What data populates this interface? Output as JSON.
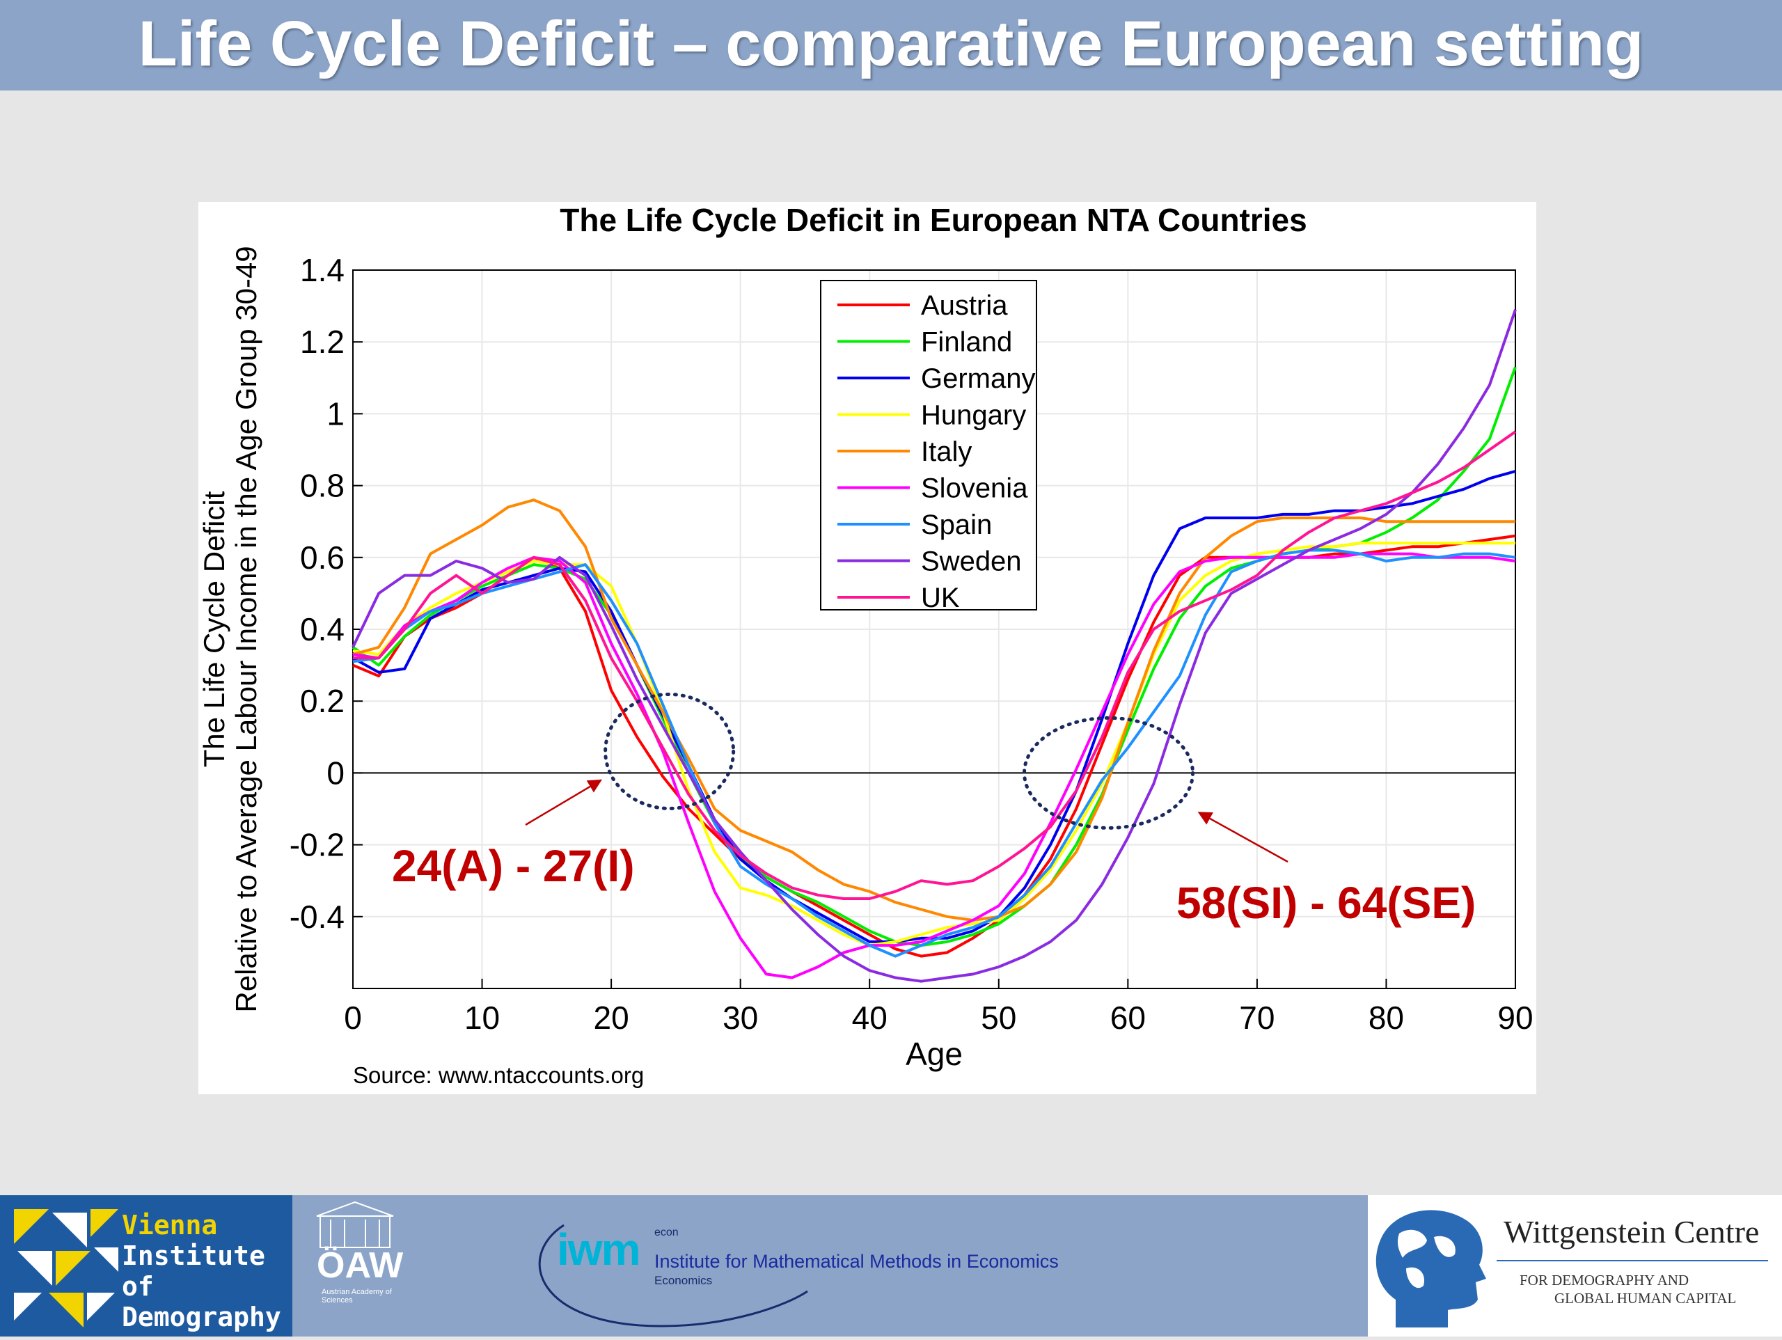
{
  "slide": {
    "title": "Life Cycle Deficit – comparative European setting"
  },
  "chart_data": {
    "type": "line",
    "title": "The Life Cycle Deficit in European NTA Countries",
    "xlabel": "Age",
    "ylabel_line1": "The Life Cycle Deficit",
    "ylabel_line2": "Relative to Average Labour Income in the Age Group 30-49",
    "xlim": [
      0,
      90
    ],
    "ylim": [
      -0.6,
      1.4
    ],
    "xticks": [
      "0",
      "10",
      "20",
      "30",
      "40",
      "50",
      "60",
      "70",
      "80",
      "90"
    ],
    "yticks": [
      "1.4",
      "1.2",
      "1",
      "0.8",
      "0.6",
      "0.4",
      "0.2",
      "0",
      "-0.2",
      "-0.4"
    ],
    "legend_position": "top-center",
    "grid": true,
    "source": "Source: www.ntaccounts.org",
    "x": [
      0,
      2,
      4,
      6,
      8,
      10,
      12,
      14,
      16,
      18,
      20,
      22,
      24,
      26,
      28,
      30,
      32,
      34,
      36,
      38,
      40,
      42,
      44,
      46,
      48,
      50,
      52,
      54,
      56,
      58,
      60,
      62,
      64,
      66,
      68,
      70,
      72,
      74,
      76,
      78,
      80,
      82,
      84,
      86,
      88,
      90
    ],
    "series": [
      {
        "name": "Austria",
        "color": "#ff0000",
        "values": [
          0.3,
          0.27,
          0.38,
          0.43,
          0.46,
          0.5,
          0.55,
          0.6,
          0.57,
          0.45,
          0.23,
          0.1,
          -0.01,
          -0.1,
          -0.17,
          -0.24,
          -0.29,
          -0.33,
          -0.37,
          -0.41,
          -0.45,
          -0.49,
          -0.51,
          -0.5,
          -0.46,
          -0.41,
          -0.34,
          -0.24,
          -0.1,
          0.08,
          0.26,
          0.42,
          0.55,
          0.6,
          0.6,
          0.6,
          0.6,
          0.6,
          0.61,
          0.61,
          0.62,
          0.63,
          0.63,
          0.64,
          0.65,
          0.66
        ]
      },
      {
        "name": "Finland",
        "color": "#00ee00",
        "values": [
          0.35,
          0.3,
          0.38,
          0.44,
          0.48,
          0.52,
          0.55,
          0.58,
          0.57,
          0.54,
          0.44,
          0.3,
          0.15,
          0.0,
          -0.14,
          -0.23,
          -0.29,
          -0.33,
          -0.36,
          -0.4,
          -0.44,
          -0.47,
          -0.48,
          -0.47,
          -0.45,
          -0.42,
          -0.37,
          -0.31,
          -0.2,
          -0.06,
          0.12,
          0.29,
          0.43,
          0.52,
          0.57,
          0.59,
          0.61,
          0.62,
          0.63,
          0.64,
          0.67,
          0.71,
          0.76,
          0.84,
          0.93,
          1.13
        ]
      },
      {
        "name": "Germany",
        "color": "#0000ee",
        "values": [
          0.32,
          0.28,
          0.29,
          0.43,
          0.47,
          0.51,
          0.53,
          0.55,
          0.57,
          0.56,
          0.45,
          0.3,
          0.16,
          0.02,
          -0.13,
          -0.24,
          -0.3,
          -0.35,
          -0.39,
          -0.43,
          -0.47,
          -0.47,
          -0.46,
          -0.46,
          -0.44,
          -0.4,
          -0.32,
          -0.2,
          -0.05,
          0.15,
          0.36,
          0.55,
          0.68,
          0.71,
          0.71,
          0.71,
          0.72,
          0.72,
          0.73,
          0.73,
          0.74,
          0.75,
          0.77,
          0.79,
          0.82,
          0.84
        ]
      },
      {
        "name": "Hungary",
        "color": "#ffff00",
        "values": [
          0.34,
          0.33,
          0.41,
          0.46,
          0.5,
          0.53,
          0.56,
          0.59,
          0.58,
          0.58,
          0.52,
          0.36,
          0.17,
          -0.05,
          -0.22,
          -0.32,
          -0.34,
          -0.37,
          -0.41,
          -0.45,
          -0.48,
          -0.47,
          -0.45,
          -0.43,
          -0.42,
          -0.41,
          -0.35,
          -0.27,
          -0.16,
          -0.03,
          0.14,
          0.33,
          0.48,
          0.55,
          0.59,
          0.61,
          0.62,
          0.63,
          0.63,
          0.64,
          0.64,
          0.64,
          0.64,
          0.64,
          0.64,
          0.64
        ]
      },
      {
        "name": "Italy",
        "color": "#ff8800",
        "values": [
          0.33,
          0.35,
          0.46,
          0.61,
          0.65,
          0.69,
          0.74,
          0.76,
          0.73,
          0.63,
          0.43,
          0.3,
          0.17,
          0.04,
          -0.1,
          -0.16,
          -0.19,
          -0.22,
          -0.27,
          -0.31,
          -0.33,
          -0.36,
          -0.38,
          -0.4,
          -0.41,
          -0.4,
          -0.37,
          -0.31,
          -0.22,
          -0.07,
          0.14,
          0.34,
          0.5,
          0.6,
          0.66,
          0.7,
          0.71,
          0.71,
          0.71,
          0.71,
          0.7,
          0.7,
          0.7,
          0.7,
          0.7,
          0.7
        ]
      },
      {
        "name": "Slovenia",
        "color": "#ff00ff",
        "values": [
          0.33,
          0.32,
          0.41,
          0.45,
          0.48,
          0.53,
          0.57,
          0.6,
          0.59,
          0.53,
          0.36,
          0.22,
          0.06,
          -0.14,
          -0.33,
          -0.46,
          -0.56,
          -0.57,
          -0.54,
          -0.5,
          -0.48,
          -0.48,
          -0.47,
          -0.44,
          -0.41,
          -0.37,
          -0.28,
          -0.14,
          0.01,
          0.17,
          0.33,
          0.47,
          0.56,
          0.59,
          0.6,
          0.6,
          0.6,
          0.6,
          0.6,
          0.61,
          0.61,
          0.61,
          0.6,
          0.6,
          0.6,
          0.59
        ]
      },
      {
        "name": "Spain",
        "color": "#1e90ff",
        "values": [
          0.31,
          0.32,
          0.4,
          0.45,
          0.47,
          0.5,
          0.52,
          0.54,
          0.56,
          0.58,
          0.48,
          0.36,
          0.19,
          0.02,
          -0.14,
          -0.26,
          -0.31,
          -0.35,
          -0.4,
          -0.44,
          -0.48,
          -0.51,
          -0.48,
          -0.45,
          -0.43,
          -0.4,
          -0.34,
          -0.26,
          -0.14,
          -0.02,
          0.07,
          0.17,
          0.27,
          0.44,
          0.56,
          0.59,
          0.61,
          0.62,
          0.62,
          0.61,
          0.59,
          0.6,
          0.6,
          0.61,
          0.61,
          0.6
        ]
      },
      {
        "name": "Sweden",
        "color": "#8a2be2",
        "values": [
          0.35,
          0.5,
          0.55,
          0.55,
          0.59,
          0.57,
          0.53,
          0.54,
          0.6,
          0.55,
          0.41,
          0.26,
          0.13,
          0.0,
          -0.13,
          -0.22,
          -0.3,
          -0.38,
          -0.45,
          -0.51,
          -0.55,
          -0.57,
          -0.58,
          -0.57,
          -0.56,
          -0.54,
          -0.51,
          -0.47,
          -0.41,
          -0.31,
          -0.18,
          -0.03,
          0.19,
          0.39,
          0.5,
          0.54,
          0.58,
          0.62,
          0.65,
          0.68,
          0.72,
          0.78,
          0.86,
          0.96,
          1.08,
          1.29
        ]
      },
      {
        "name": "UK",
        "color": "#ff1493",
        "values": [
          0.32,
          0.32,
          0.4,
          0.5,
          0.55,
          0.5,
          0.55,
          0.6,
          0.58,
          0.48,
          0.32,
          0.2,
          0.07,
          -0.06,
          -0.16,
          -0.23,
          -0.28,
          -0.32,
          -0.34,
          -0.35,
          -0.35,
          -0.33,
          -0.3,
          -0.31,
          -0.3,
          -0.26,
          -0.21,
          -0.15,
          -0.05,
          0.1,
          0.28,
          0.4,
          0.45,
          0.48,
          0.51,
          0.55,
          0.62,
          0.67,
          0.71,
          0.73,
          0.75,
          0.78,
          0.81,
          0.85,
          0.9,
          0.95
        ]
      }
    ],
    "annotations": [
      {
        "text": "24(A) - 27(I)",
        "color": "#c00000",
        "ellipse_center": [
          24.5,
          0.06
        ],
        "arrow_to": [
          19.2,
          -0.02
        ]
      },
      {
        "text": "58(SI) - 64(SE)",
        "color": "#c00000",
        "ellipse_center": [
          58.5,
          0.0
        ],
        "arrow_to": [
          65.5,
          -0.11
        ]
      }
    ]
  },
  "footer": {
    "vid_logo": {
      "line1": "Vienna",
      "line2": "Institute of",
      "line3": "Demography"
    },
    "oaw_logo": {
      "name": "ÖAW",
      "sub": "Austrian Academy of Sciences"
    },
    "iwm_logo": {
      "mark": "iwm",
      "tag": "econ",
      "name": "Institute for Mathematical Methods in Economics",
      "sub": "Economics"
    },
    "wc_logo": {
      "name": "Wittgenstein Centre",
      "sub1": "FOR DEMOGRAPHY AND",
      "sub2": "GLOBAL HUMAN CAPITAL"
    }
  }
}
